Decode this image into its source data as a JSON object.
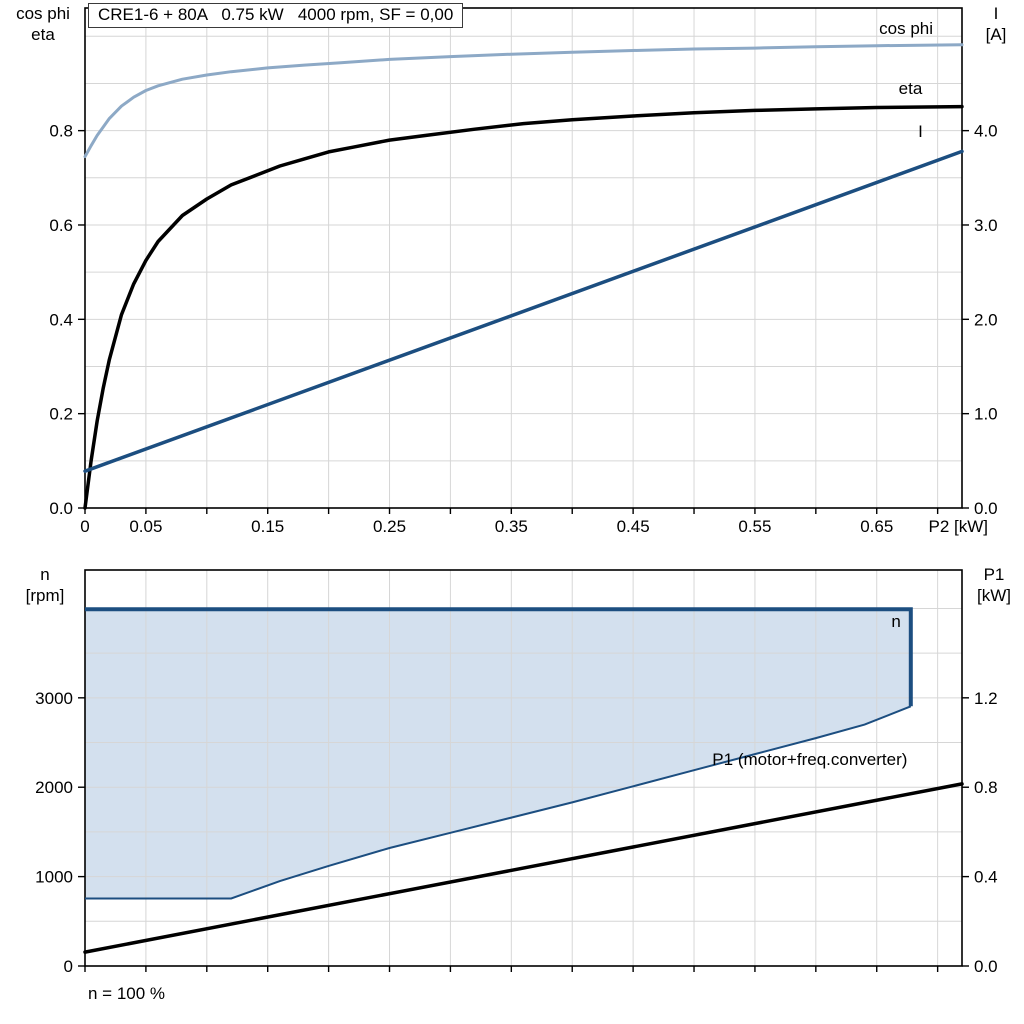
{
  "header": {
    "title": "CRE1-6 + 80A   0.75 kW   4000 rpm, SF = 0,00"
  },
  "footnote": "n = 100 %",
  "chart_data": [
    {
      "type": "line",
      "name": "motor-performance-curves",
      "x_axis": {
        "label": "P2 [kW]",
        "min": 0,
        "max": 0.72,
        "grid_step": 0.05,
        "ticks": [
          {
            "v": 0,
            "t": "0"
          },
          {
            "v": 0.05,
            "t": "0.05"
          },
          {
            "v": 0.15,
            "t": "0.15"
          },
          {
            "v": 0.25,
            "t": "0.25"
          },
          {
            "v": 0.35,
            "t": "0.35"
          },
          {
            "v": 0.45,
            "t": "0.45"
          },
          {
            "v": 0.55,
            "t": "0.55"
          },
          {
            "v": 0.65,
            "t": "0.65"
          }
        ]
      },
      "left_axis": {
        "title_lines": [
          "cos phi",
          "eta"
        ],
        "min": 0,
        "max": 1.06,
        "grid_step": 0.1,
        "ticks": [
          {
            "v": 0.0,
            "t": "0.0"
          },
          {
            "v": 0.2,
            "t": "0.2"
          },
          {
            "v": 0.4,
            "t": "0.4"
          },
          {
            "v": 0.6,
            "t": "0.6"
          },
          {
            "v": 0.8,
            "t": "0.8"
          }
        ]
      },
      "right_axis": {
        "title_lines": [
          "I",
          "[A]"
        ],
        "min": 0,
        "max": 5.3,
        "ticks": [
          {
            "v": 0.0,
            "t": "0.0"
          },
          {
            "v": 1.0,
            "t": "1.0"
          },
          {
            "v": 2.0,
            "t": "2.0"
          },
          {
            "v": 3.0,
            "t": "3.0"
          },
          {
            "v": 4.0,
            "t": "4.0"
          }
        ]
      },
      "series": [
        {
          "name": "cos phi",
          "type": "line",
          "axis": "left",
          "color": "#8da9c6",
          "width": 3,
          "points": [
            [
              0,
              0.745
            ],
            [
              0.005,
              0.768
            ],
            [
              0.01,
              0.79
            ],
            [
              0.02,
              0.826
            ],
            [
              0.03,
              0.852
            ],
            [
              0.04,
              0.871
            ],
            [
              0.05,
              0.885
            ],
            [
              0.06,
              0.895
            ],
            [
              0.08,
              0.909
            ],
            [
              0.1,
              0.918
            ],
            [
              0.12,
              0.925
            ],
            [
              0.15,
              0.933
            ],
            [
              0.18,
              0.939
            ],
            [
              0.21,
              0.944
            ],
            [
              0.25,
              0.951
            ],
            [
              0.3,
              0.957
            ],
            [
              0.35,
              0.962
            ],
            [
              0.4,
              0.966
            ],
            [
              0.45,
              0.97
            ],
            [
              0.5,
              0.973
            ],
            [
              0.55,
              0.975
            ],
            [
              0.6,
              0.978
            ],
            [
              0.65,
              0.98
            ],
            [
              0.72,
              0.982
            ]
          ],
          "label": {
            "text": "cos phi",
            "x": 0.652,
            "y": 1.005,
            "color": "#8da9c6"
          }
        },
        {
          "name": "eta",
          "type": "line",
          "axis": "left",
          "color": "#000000",
          "width": 3.5,
          "points": [
            [
              0,
              0.0
            ],
            [
              0.005,
              0.1
            ],
            [
              0.01,
              0.185
            ],
            [
              0.015,
              0.255
            ],
            [
              0.02,
              0.315
            ],
            [
              0.03,
              0.41
            ],
            [
              0.04,
              0.475
            ],
            [
              0.05,
              0.525
            ],
            [
              0.06,
              0.565
            ],
            [
              0.08,
              0.62
            ],
            [
              0.1,
              0.655
            ],
            [
              0.12,
              0.685
            ],
            [
              0.14,
              0.705
            ],
            [
              0.16,
              0.725
            ],
            [
              0.18,
              0.74
            ],
            [
              0.2,
              0.755
            ],
            [
              0.22,
              0.765
            ],
            [
              0.25,
              0.78
            ],
            [
              0.28,
              0.79
            ],
            [
              0.32,
              0.803
            ],
            [
              0.36,
              0.815
            ],
            [
              0.4,
              0.823
            ],
            [
              0.45,
              0.831
            ],
            [
              0.5,
              0.838
            ],
            [
              0.55,
              0.843
            ],
            [
              0.6,
              0.846
            ],
            [
              0.65,
              0.849
            ],
            [
              0.72,
              0.851
            ]
          ],
          "label": {
            "text": "eta",
            "x": 0.668,
            "y": 0.878,
            "color": "#000000"
          }
        },
        {
          "name": "I",
          "type": "line",
          "axis": "right",
          "color": "#1c4e80",
          "width": 3.5,
          "points": [
            [
              0,
              0.39
            ],
            [
              0.72,
              3.78
            ]
          ],
          "label": {
            "text": "I",
            "x": 0.684,
            "y": 3.93,
            "color": "#1c4e80"
          }
        }
      ]
    },
    {
      "type": "area",
      "name": "speed-range-and-input-power",
      "x_axis": {
        "label": "",
        "min": 0,
        "max": 0.72,
        "grid_step": 0.05,
        "ticks": []
      },
      "left_axis": {
        "title_lines": [
          "n",
          "[rpm]"
        ],
        "min": 0,
        "max": 4430,
        "grid_step": 500,
        "ticks": [
          {
            "v": 0,
            "t": "0"
          },
          {
            "v": 1000,
            "t": "1000"
          },
          {
            "v": 2000,
            "t": "2000"
          },
          {
            "v": 3000,
            "t": "3000"
          }
        ]
      },
      "right_axis": {
        "title_lines": [
          "P1",
          "[kW]"
        ],
        "min": 0,
        "max": 1.772,
        "ticks": [
          {
            "v": 0.0,
            "t": "0.0"
          },
          {
            "v": 0.4,
            "t": "0.4"
          },
          {
            "v": 0.8,
            "t": "0.8"
          },
          {
            "v": 1.2,
            "t": "1.2"
          }
        ]
      },
      "series": [
        {
          "name": "n operating envelope",
          "type": "area",
          "axis": "left",
          "fill": "#d3e0ee",
          "stroke": "#1c4e80",
          "line_width": 4,
          "outline_width": 2,
          "upper": [
            [
              0,
              3990
            ],
            [
              0.678,
              3990
            ],
            [
              0.678,
              2905
            ]
          ],
          "lower": [
            [
              0,
              755
            ],
            [
              0.12,
              755
            ],
            [
              0.16,
              950
            ],
            [
              0.2,
              1120
            ],
            [
              0.25,
              1320
            ],
            [
              0.3,
              1490
            ],
            [
              0.35,
              1660
            ],
            [
              0.4,
              1830
            ],
            [
              0.45,
              2010
            ],
            [
              0.5,
              2190
            ],
            [
              0.55,
              2370
            ],
            [
              0.6,
              2550
            ],
            [
              0.64,
              2700
            ],
            [
              0.678,
              2905
            ]
          ],
          "label": {
            "text": "n",
            "x": 0.662,
            "y": 3790,
            "color": "#1c4e80"
          }
        },
        {
          "name": "P1 (motor+freq.converter)",
          "type": "line",
          "axis": "right",
          "color": "#000000",
          "width": 3.5,
          "points": [
            [
              0,
              0.062
            ],
            [
              0.72,
              0.815
            ]
          ],
          "label": {
            "text": "P1 (motor+freq.converter)",
            "x": 0.515,
            "y": 0.9,
            "color": "#000000"
          }
        }
      ]
    }
  ]
}
